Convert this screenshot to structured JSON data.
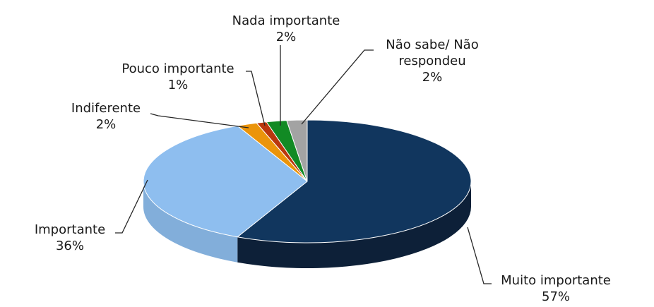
{
  "chart_data": {
    "type": "pie",
    "style": "3d",
    "legend": "none",
    "label_placement": "outside-callouts",
    "background_color": "#FFFFFF",
    "text_color": "#1A1A1A",
    "leader_line_color": "#262626",
    "start_angle_deg": 0,
    "direction": "clockwise",
    "unit": "%",
    "slices": [
      {
        "name": "Muito importante",
        "value": 57,
        "pct_label": "57%",
        "color": "#11365E",
        "side_color": "#0D2038"
      },
      {
        "name": "Importante",
        "value": 36,
        "pct_label": "36%",
        "color": "#8EBEEF",
        "side_color": "#82AEDA"
      },
      {
        "name": "Indiferente",
        "value": 2,
        "pct_label": "2%",
        "color": "#EB940A",
        "side_color": "#C47A08"
      },
      {
        "name": "Pouco importante",
        "value": 1,
        "pct_label": "1%",
        "color": "#BA370D",
        "side_color": "#962C0A"
      },
      {
        "name": "Nada importante",
        "value": 2,
        "pct_label": "2%",
        "color": "#128A24",
        "side_color": "#0E6E1C"
      },
      {
        "name": "Não sabe/ Não respondeu",
        "value": 2,
        "pct_label": "2%",
        "color": "#A3A3A3",
        "side_color": "#8A8A8A"
      }
    ]
  }
}
